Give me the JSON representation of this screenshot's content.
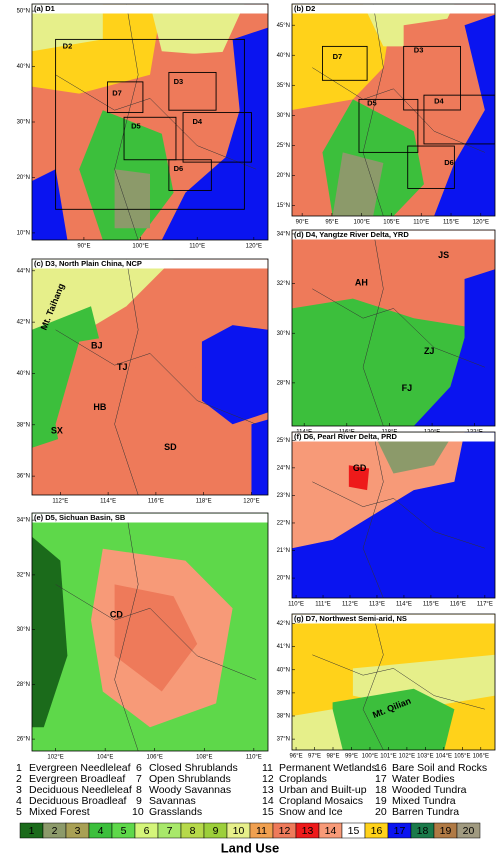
{
  "panels": [
    {
      "label": "(a) D1",
      "xticks": [
        "90°E",
        "100°E",
        "110°E",
        "120°E"
      ],
      "yticks": [
        "50°N",
        "40°N",
        "30°N",
        "20°N",
        "10°N"
      ],
      "regions": [
        "D2",
        "D7",
        "D3",
        "D5",
        "D4",
        "D6"
      ]
    },
    {
      "label": "(b) D2",
      "xticks": [
        "90°E",
        "95°E",
        "100°E",
        "105°E",
        "110°E",
        "115°E",
        "120°E"
      ],
      "yticks": [
        "45°N",
        "40°N",
        "35°N",
        "30°N",
        "25°N",
        "20°N",
        "15°N"
      ],
      "regions": [
        "D7",
        "D3",
        "D5",
        "D4",
        "D6"
      ]
    },
    {
      "label": "(c) D3, North Plain China, NCP",
      "xticks": [
        "112°E",
        "114°E",
        "116°E",
        "118°E",
        "120°E"
      ],
      "yticks": [
        "44°N",
        "42°N",
        "40°N",
        "38°N",
        "36°N"
      ],
      "regions": [
        "Mt. Taihang",
        "BJ",
        "TJ",
        "HB",
        "SX",
        "SD"
      ]
    },
    {
      "label": "(d) D4, Yangtze River Delta, YRD",
      "xticks": [
        "114°E",
        "116°E",
        "118°E",
        "120°E",
        "122°E"
      ],
      "yticks": [
        "34°N",
        "32°N",
        "30°N",
        "28°N"
      ],
      "regions": [
        "JS",
        "AH",
        "ZJ",
        "FJ"
      ]
    },
    {
      "label": "(e) D5, Sichuan Basin, SB",
      "xticks": [
        "102°E",
        "104°E",
        "106°E",
        "108°E",
        "110°E"
      ],
      "yticks": [
        "34°N",
        "32°N",
        "30°N",
        "28°N",
        "26°N"
      ],
      "regions": [
        "CD"
      ]
    },
    {
      "label": "(f) D6, Pearl River Delta, PRD",
      "xticks": [
        "110°E",
        "111°E",
        "112°E",
        "113°E",
        "114°E",
        "115°E",
        "116°E",
        "117°E"
      ],
      "yticks": [
        "25°N",
        "24°N",
        "23°N",
        "22°N",
        "21°N",
        "20°N"
      ],
      "regions": [
        "GD"
      ]
    },
    {
      "label": "(g) D7, Northwest Semi-arid, NS",
      "xticks": [
        "96°E",
        "97°E",
        "98°E",
        "99°E",
        "100°E",
        "101°E",
        "102°E",
        "103°E",
        "104°E",
        "105°E",
        "106°E"
      ],
      "yticks": [
        "42°N",
        "41°N",
        "40°N",
        "39°N",
        "38°N",
        "37°N"
      ],
      "regions": [
        "Mt. Qilian"
      ]
    }
  ],
  "legend": {
    "title": "Land Use",
    "items": [
      {
        "number": 1,
        "name": "Evergreen Needleleaf",
        "color": "#1b6b1b"
      },
      {
        "number": 2,
        "name": "Evergreen Broadleaf",
        "color": "#8c9a6a"
      },
      {
        "number": 3,
        "name": "Deciduous Needleleaf",
        "color": "#a8a055"
      },
      {
        "number": 4,
        "name": "Deciduous Broadleaf",
        "color": "#3cbf3c"
      },
      {
        "number": 5,
        "name": "Mixed Forest",
        "color": "#5ed84a"
      },
      {
        "number": 6,
        "name": "Closed Shrublands",
        "color": "#d4f57a"
      },
      {
        "number": 7,
        "name": "Open Shrublands",
        "color": "#a8e86a"
      },
      {
        "number": 8,
        "name": "Woody Savannas",
        "color": "#b6d94a"
      },
      {
        "number": 9,
        "name": "Savannas",
        "color": "#9ccf3a"
      },
      {
        "number": 10,
        "name": "Grasslands",
        "color": "#e6ef8a"
      },
      {
        "number": 11,
        "name": "Permanent Wetlands",
        "color": "#f0a050"
      },
      {
        "number": 12,
        "name": "Croplands",
        "color": "#ee7a5a"
      },
      {
        "number": 13,
        "name": "Urban and Built-up",
        "color": "#ee1a1a"
      },
      {
        "number": 14,
        "name": "Cropland Mosaics",
        "color": "#f79a78"
      },
      {
        "number": 15,
        "name": "Snow and Ice",
        "color": "#ffffff"
      },
      {
        "number": 16,
        "name": "Bare Soil and Rocks",
        "color": "#ffd21a"
      },
      {
        "number": 17,
        "name": "Water Bodies",
        "color": "#0a14f0"
      },
      {
        "number": 18,
        "name": "Wooded Tundra",
        "color": "#1a7a4a"
      },
      {
        "number": 19,
        "name": "Mixed Tundra",
        "color": "#b07a45"
      },
      {
        "number": 20,
        "name": "Barren Tundra",
        "color": "#a09a80"
      }
    ]
  }
}
